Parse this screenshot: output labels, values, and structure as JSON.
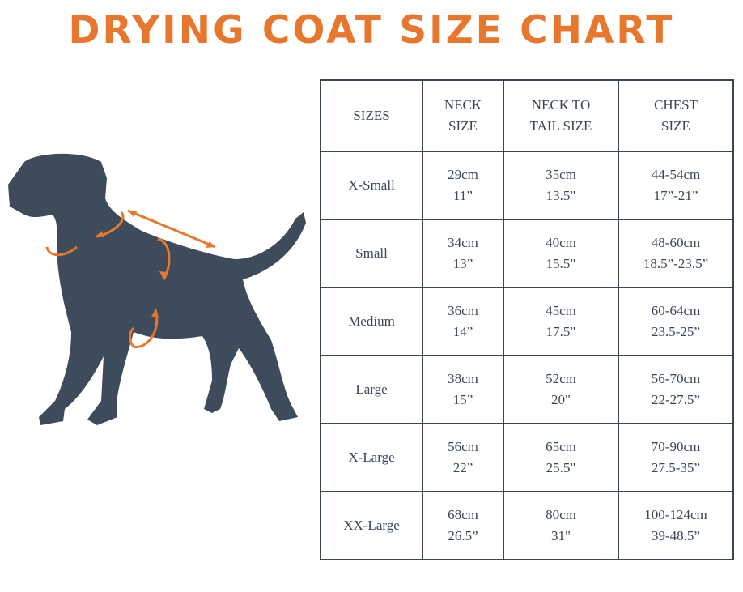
{
  "header": {
    "title": "DRYING COAT SIZE CHART"
  },
  "table": {
    "columns": [
      [
        "SIZES"
      ],
      [
        "NECK",
        "SIZE"
      ],
      [
        "NECK TO",
        "TAIL SIZE"
      ],
      [
        "CHEST",
        "SIZE"
      ]
    ],
    "rows": [
      [
        [
          "X-Small"
        ],
        [
          "29cm",
          "11”"
        ],
        [
          "35cm",
          "13.5\""
        ],
        [
          "44-54cm",
          "17”-21”"
        ]
      ],
      [
        [
          "Small"
        ],
        [
          "34cm",
          "13”"
        ],
        [
          "40cm",
          "15.5\""
        ],
        [
          "48-60cm",
          "18.5”-23.5”"
        ]
      ],
      [
        [
          "Medium"
        ],
        [
          "36cm",
          "14”"
        ],
        [
          "45cm",
          "17.5\""
        ],
        [
          "60-64cm",
          "23.5-25”"
        ]
      ],
      [
        [
          "Large"
        ],
        [
          "38cm",
          "15”"
        ],
        [
          "52cm",
          "20\""
        ],
        [
          "56-70cm",
          "22-27.5”"
        ]
      ],
      [
        [
          "X-Large"
        ],
        [
          "56cm",
          "22”"
        ],
        [
          "65cm",
          "25.5\""
        ],
        [
          "70-90cm",
          "27.5-35”"
        ]
      ],
      [
        [
          "XX-Large"
        ],
        [
          "68cm",
          "26.5”"
        ],
        [
          "80cm",
          "31\""
        ],
        [
          "100-124cm",
          "39-48.5”"
        ]
      ]
    ]
  }
}
